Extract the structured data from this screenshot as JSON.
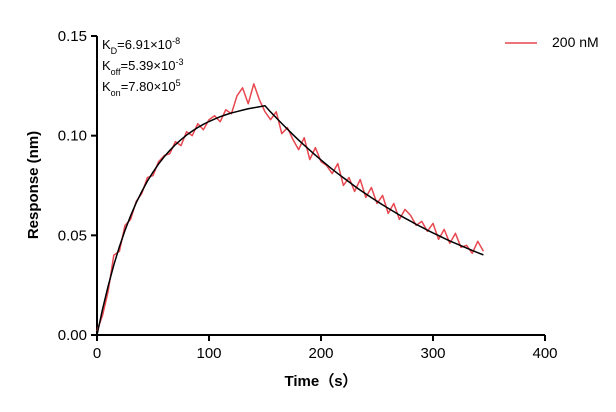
{
  "chart_data": {
    "type": "line",
    "xlabel": "Time（s）",
    "ylabel": "Response (nm)",
    "xlim": [
      0,
      400
    ],
    "xticks": [
      0,
      100,
      200,
      300,
      400
    ],
    "ylim": [
      0,
      0.15
    ],
    "yticks": [
      {
        "value": 0,
        "label": "0.00"
      },
      {
        "value": 0.05,
        "label": "0.05"
      },
      {
        "value": 0.1,
        "label": "0.10"
      },
      {
        "value": 0.15,
        "label": "0.15"
      }
    ],
    "legend": "upper right",
    "annotations": [
      {
        "main": "K",
        "sub": "D",
        "text": "=6.91×10",
        "sup": "-8"
      },
      {
        "main": "K",
        "sub": "off",
        "text": "=5.39×10",
        "sup": "-3"
      },
      {
        "main": "K",
        "sub": "on",
        "text": "=7.80×10",
        "sup": "5"
      }
    ],
    "x": [
      0,
      5,
      10,
      15,
      20,
      25,
      30,
      35,
      40,
      45,
      50,
      55,
      60,
      65,
      70,
      75,
      80,
      85,
      90,
      95,
      100,
      105,
      110,
      115,
      120,
      125,
      130,
      135,
      140,
      145,
      150,
      155,
      160,
      165,
      170,
      175,
      180,
      185,
      190,
      195,
      200,
      205,
      210,
      215,
      220,
      225,
      230,
      235,
      240,
      245,
      250,
      255,
      260,
      265,
      270,
      275,
      280,
      285,
      290,
      295,
      300,
      305,
      310,
      315,
      320,
      325,
      330,
      335,
      340,
      345
    ],
    "series": [
      {
        "name": "200 nM",
        "color": "#e8474f",
        "width": 1.5,
        "values": [
          0.002,
          0.01,
          0.022,
          0.04,
          0.042,
          0.055,
          0.058,
          0.067,
          0.071,
          0.079,
          0.08,
          0.087,
          0.09,
          0.091,
          0.097,
          0.095,
          0.102,
          0.1,
          0.106,
          0.103,
          0.108,
          0.11,
          0.107,
          0.113,
          0.111,
          0.12,
          0.124,
          0.116,
          0.126,
          0.118,
          0.112,
          0.108,
          0.112,
          0.101,
          0.104,
          0.098,
          0.093,
          0.099,
          0.088,
          0.094,
          0.087,
          0.085,
          0.081,
          0.086,
          0.075,
          0.079,
          0.072,
          0.078,
          0.069,
          0.074,
          0.066,
          0.07,
          0.061,
          0.066,
          0.058,
          0.063,
          0.06,
          0.055,
          0.057,
          0.052,
          0.056,
          0.048,
          0.053,
          0.046,
          0.051,
          0.044,
          0.045,
          0.041,
          0.047,
          0.042
        ]
      },
      {
        "color": "#000000",
        "width": 1.5,
        "values": [
          0,
          0.0131,
          0.0247,
          0.0351,
          0.0443,
          0.0525,
          0.0598,
          0.0663,
          0.072,
          0.0772,
          0.0817,
          0.0858,
          0.0894,
          0.0926,
          0.0955,
          0.098,
          0.1003,
          0.1023,
          0.1041,
          0.1057,
          0.1071,
          0.1083,
          0.1095,
          0.1105,
          0.1114,
          0.1121,
          0.1128,
          0.1135,
          0.114,
          0.1145,
          0.115,
          0.1119,
          0.109,
          0.1061,
          0.1033,
          0.1005,
          0.0978,
          0.0952,
          0.0927,
          0.0902,
          0.0878,
          0.0855,
          0.0832,
          0.081,
          0.0789,
          0.0768,
          0.0747,
          0.0727,
          0.0708,
          0.0689,
          0.0671,
          0.0653,
          0.0636,
          0.0619,
          0.0602,
          0.0586,
          0.0571,
          0.0555,
          0.0541,
          0.0526,
          0.0512,
          0.0499,
          0.0485,
          0.0472,
          0.046,
          0.0448,
          0.0436,
          0.0424,
          0.0413,
          0.0402
        ]
      }
    ]
  }
}
